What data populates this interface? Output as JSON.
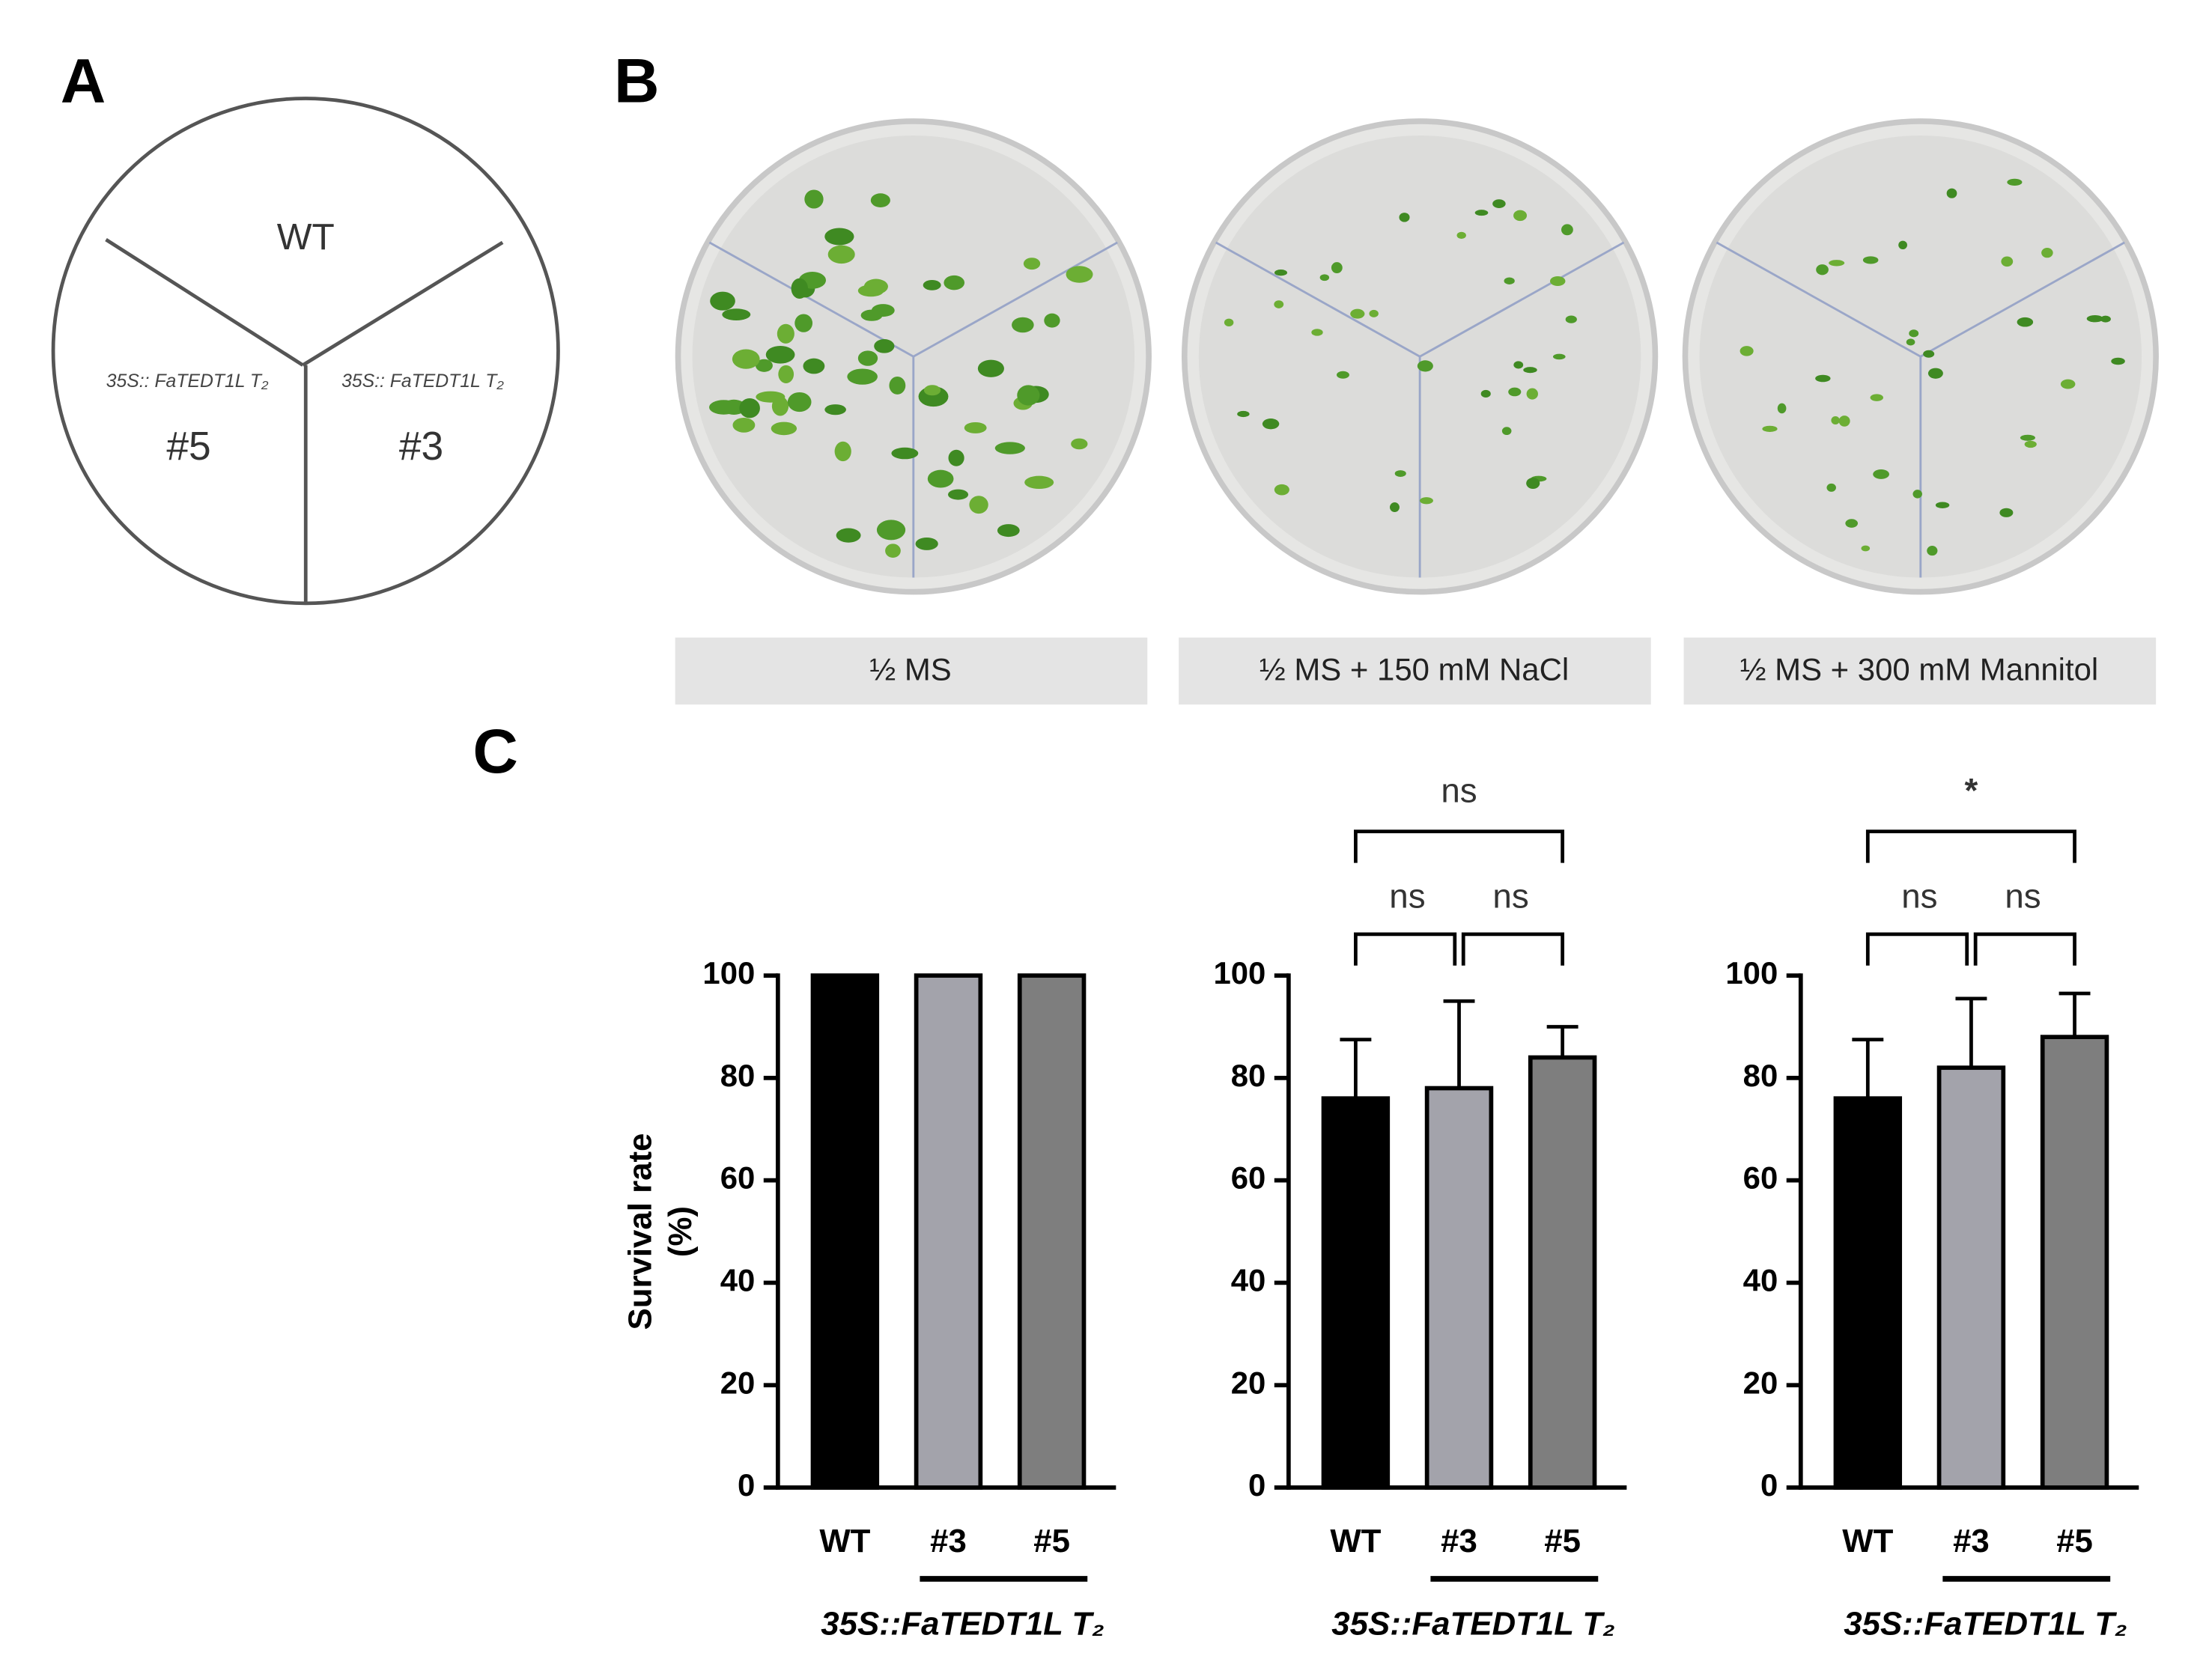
{
  "panels": {
    "A": {
      "letter": "A",
      "wt": "WT",
      "left_line": "35S:: FaTEDT1L T₂",
      "right_line": "35S:: FaTEDT1L T₂",
      "left": "#5",
      "right": "#3"
    },
    "B": {
      "letter": "B",
      "conditions": [
        "½ MS",
        "½ MS + 150 mM NaCl",
        "½ MS + 300 mM Mannitol"
      ]
    },
    "C": {
      "letter": "C"
    }
  },
  "chart_data": [
    {
      "type": "bar",
      "categories": [
        "WT",
        "#3",
        "#5"
      ],
      "values": [
        100,
        100,
        100
      ],
      "colors": [
        "#000000",
        "#a3a3ab",
        "#7e7e7e"
      ],
      "ylim": [
        0,
        100
      ],
      "yticks": [
        0,
        20,
        40,
        60,
        80,
        100
      ],
      "ylabel": [
        "Survival rate",
        "(%)"
      ],
      "group_label": "35S::FaTEDT1L T₂"
    },
    {
      "type": "bar",
      "categories": [
        "WT",
        "#3",
        "#5"
      ],
      "values": [
        76,
        78,
        84
      ],
      "errors": [
        11.5,
        17,
        6
      ],
      "colors": [
        "#000000",
        "#a3a3ab",
        "#7e7e7e"
      ],
      "ylim": [
        0,
        100
      ],
      "yticks": [
        0,
        20,
        40,
        60,
        80,
        100
      ],
      "group_label": "35S::FaTEDT1L T₂",
      "comparisons": [
        "ns",
        "ns",
        "ns"
      ]
    },
    {
      "type": "bar",
      "categories": [
        "WT",
        "#3",
        "#5"
      ],
      "values": [
        76,
        82,
        88
      ],
      "errors": [
        11.5,
        13.5,
        8.5
      ],
      "colors": [
        "#000000",
        "#a3a3ab",
        "#7e7e7e"
      ],
      "ylim": [
        0,
        100
      ],
      "yticks": [
        0,
        20,
        40,
        60,
        80,
        100
      ],
      "group_label": "35S::FaTEDT1L T₂",
      "comparisons": [
        "ns",
        "ns",
        "*"
      ]
    }
  ]
}
